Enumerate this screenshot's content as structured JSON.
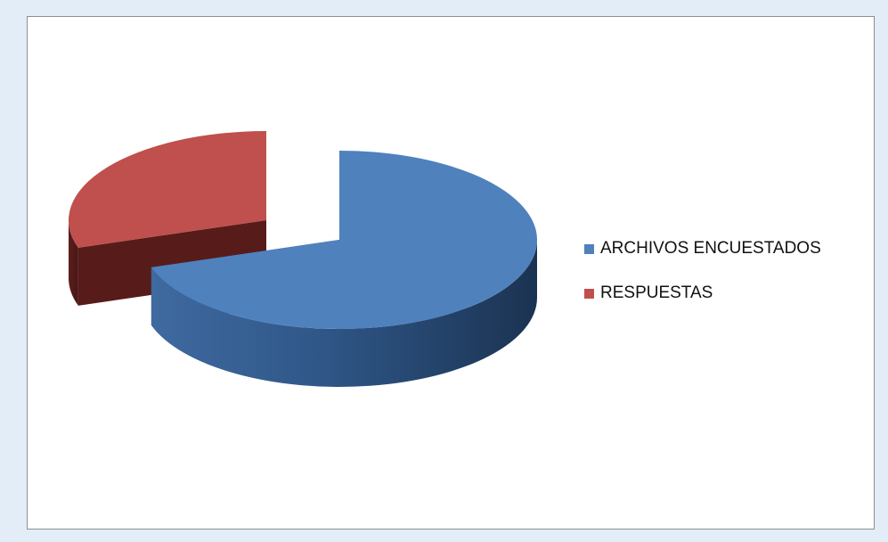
{
  "chart_data": {
    "type": "pie",
    "style": "3d-exploded",
    "categories": [
      "ARCHIVOS ENCUESTADOS",
      "RESPUESTAS"
    ],
    "values": [
      70,
      30
    ],
    "unit": "percent (estimated)",
    "colors": [
      "#4f81bd",
      "#c0504d"
    ],
    "legend_position": "right"
  }
}
